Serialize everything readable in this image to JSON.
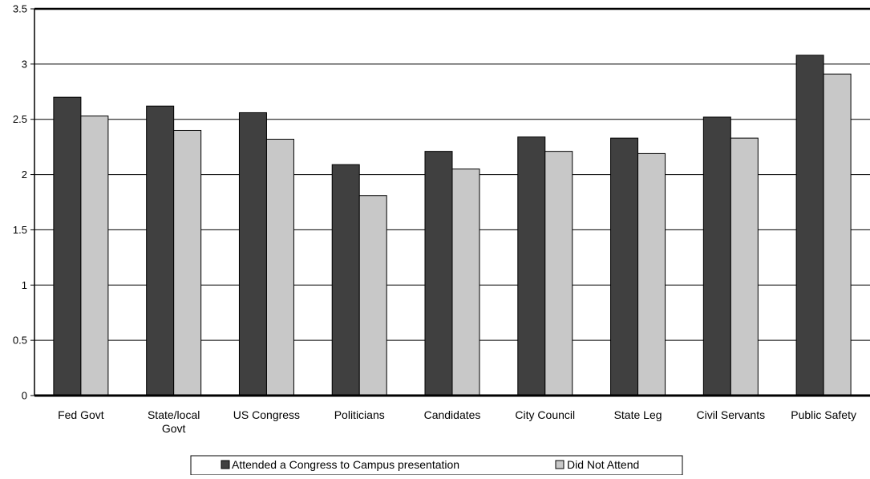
{
  "chart_data": {
    "type": "bar",
    "title": "",
    "xlabel": "",
    "ylabel": "",
    "categories": [
      [
        "Fed Govt"
      ],
      [
        "State/local",
        "Govt"
      ],
      [
        "US Congress"
      ],
      [
        "Politicians"
      ],
      [
        "Candidates"
      ],
      [
        "City Council"
      ],
      [
        "State Leg"
      ],
      [
        "Civil Servants"
      ],
      [
        "Public Safety"
      ]
    ],
    "series": [
      {
        "name": "Attended a Congress to Campus presentation",
        "color": "#404040",
        "values": [
          2.7,
          2.62,
          2.56,
          2.09,
          2.21,
          2.34,
          2.33,
          2.52,
          3.08
        ]
      },
      {
        "name": "Did Not Attend",
        "color": "#c8c8c8",
        "values": [
          2.53,
          2.4,
          2.32,
          1.81,
          2.05,
          2.21,
          2.19,
          2.33,
          2.91
        ]
      }
    ],
    "ylim": [
      0,
      3.5
    ],
    "yticks": [
      "0",
      "0.5",
      "1",
      "1.5",
      "2",
      "2.5",
      "3",
      "3.5"
    ],
    "grid": true,
    "legend_position": "bottom"
  }
}
